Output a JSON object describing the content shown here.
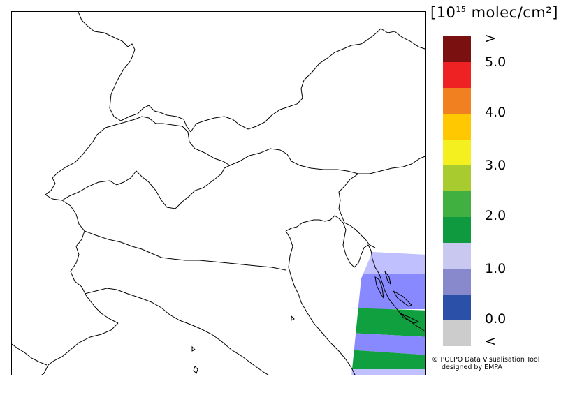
{
  "unit": {
    "open": "[10",
    "exponent": "15",
    "rest": " molec/cm²]"
  },
  "legend": {
    "swatches": [
      {
        "color": "#7a1010"
      },
      {
        "color": "#ee2222"
      },
      {
        "color": "#f08020"
      },
      {
        "color": "#ffc800"
      },
      {
        "color": "#f4f020"
      },
      {
        "color": "#a8cc30"
      },
      {
        "color": "#40b040"
      },
      {
        "color": "#109a40"
      },
      {
        "color": "#c8c8f0"
      },
      {
        "color": "#8888cc"
      },
      {
        "color": "#2a50a8"
      },
      {
        "color": "#cccccc"
      }
    ],
    "ticks": [
      ">",
      "5.0",
      "4.0",
      "3.0",
      "2.0",
      "1.0",
      "0.0",
      "<"
    ]
  },
  "overlay_colors": {
    "light_blue": "#c0c0ff",
    "blue": "#8888ff",
    "green": "#10a040"
  },
  "credits": {
    "line1": "© POLPO Data Visualisation Tool",
    "line2": "designed by EMPA"
  }
}
